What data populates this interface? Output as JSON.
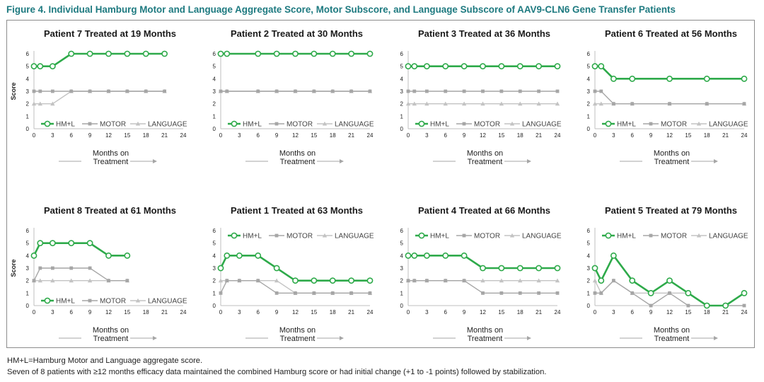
{
  "figure_title": "Figure 4. Individual Hamburg Motor and Language Aggregate Score, Motor Subscore, and Language Subscore of AAV9-CLN6 Gene Transfer Patients",
  "footnote_1": "HM+L=Hamburg Motor and Language aggregate score.",
  "footnote_2": "Seven of 8 patients with ≥12 months efficacy data maintained the combined Hamburg score or had initial change (+1 to -1 points) followed by stabilization.",
  "colors": {
    "hml": "#2eaa4a",
    "motor": "#a6a6a6",
    "language": "#c3c3c3",
    "title": "#1e7a80"
  },
  "chart_data": [
    {
      "type": "line",
      "title": "Patient 7 Treated at 19 Months",
      "ylabel": "Score",
      "xlabel": "Months on Treatment",
      "xticks": [
        0,
        3,
        6,
        9,
        12,
        15,
        18,
        21,
        24
      ],
      "yticks": [
        0,
        1,
        2,
        3,
        4,
        5,
        6
      ],
      "xlim": [
        0,
        24
      ],
      "ylim": [
        0,
        6
      ],
      "legend_position": "bottom",
      "series": [
        {
          "name": "HM+L",
          "x": [
            0,
            1,
            3,
            6,
            9,
            12,
            15,
            18,
            21
          ],
          "values": [
            5,
            5,
            5,
            6,
            6,
            6,
            6,
            6,
            6
          ]
        },
        {
          "name": "MOTOR",
          "x": [
            0,
            1,
            3,
            6,
            9,
            12,
            15,
            18,
            21
          ],
          "values": [
            3,
            3,
            3,
            3,
            3,
            3,
            3,
            3,
            3
          ]
        },
        {
          "name": "LANGUAGE",
          "x": [
            0,
            1,
            3,
            6,
            9,
            12,
            15,
            18,
            21
          ],
          "values": [
            2,
            2,
            2,
            3,
            3,
            3,
            3,
            3,
            3
          ]
        }
      ]
    },
    {
      "type": "line",
      "title": "Patient 2 Treated at 30 Months",
      "ylabel": "",
      "xlabel": "Months on Treatment",
      "xticks": [
        0,
        3,
        6,
        9,
        12,
        15,
        18,
        21,
        24
      ],
      "yticks": [
        0,
        1,
        2,
        3,
        4,
        5,
        6
      ],
      "xlim": [
        0,
        24
      ],
      "ylim": [
        0,
        6
      ],
      "legend_position": "bottom",
      "series": [
        {
          "name": "HM+L",
          "x": [
            0,
            1,
            6,
            9,
            12,
            15,
            18,
            21,
            24
          ],
          "values": [
            6,
            6,
            6,
            6,
            6,
            6,
            6,
            6,
            6
          ]
        },
        {
          "name": "MOTOR",
          "x": [
            0,
            1,
            6,
            9,
            12,
            15,
            18,
            21,
            24
          ],
          "values": [
            3,
            3,
            3,
            3,
            3,
            3,
            3,
            3,
            3
          ]
        },
        {
          "name": "LANGUAGE",
          "x": [
            0,
            1,
            6,
            9,
            12,
            15,
            18,
            21,
            24
          ],
          "values": [
            3,
            3,
            3,
            3,
            3,
            3,
            3,
            3,
            3
          ]
        }
      ]
    },
    {
      "type": "line",
      "title": "Patient 3 Treated at 36 Months",
      "ylabel": "",
      "xlabel": "Months on Treatment",
      "xticks": [
        0,
        3,
        6,
        9,
        12,
        15,
        18,
        21,
        24
      ],
      "yticks": [
        0,
        1,
        2,
        3,
        4,
        5,
        6
      ],
      "xlim": [
        0,
        24
      ],
      "ylim": [
        0,
        6
      ],
      "legend_position": "bottom",
      "series": [
        {
          "name": "HM+L",
          "x": [
            0,
            1,
            3,
            6,
            9,
            12,
            15,
            18,
            21,
            24
          ],
          "values": [
            5,
            5,
            5,
            5,
            5,
            5,
            5,
            5,
            5,
            5
          ]
        },
        {
          "name": "MOTOR",
          "x": [
            0,
            1,
            3,
            6,
            9,
            12,
            15,
            18,
            21,
            24
          ],
          "values": [
            3,
            3,
            3,
            3,
            3,
            3,
            3,
            3,
            3,
            3
          ]
        },
        {
          "name": "LANGUAGE",
          "x": [
            0,
            1,
            3,
            6,
            9,
            12,
            15,
            18,
            21,
            24
          ],
          "values": [
            2,
            2,
            2,
            2,
            2,
            2,
            2,
            2,
            2,
            2
          ]
        }
      ]
    },
    {
      "type": "line",
      "title": "Patient 6 Treated at 56 Months",
      "ylabel": "",
      "xlabel": "Months on Treatment",
      "xticks": [
        0,
        3,
        6,
        9,
        12,
        15,
        18,
        21,
        24
      ],
      "yticks": [
        0,
        1,
        2,
        3,
        4,
        5,
        6
      ],
      "xlim": [
        0,
        24
      ],
      "ylim": [
        0,
        6
      ],
      "legend_position": "bottom",
      "series": [
        {
          "name": "HM+L",
          "x": [
            0,
            1,
            3,
            6,
            12,
            18,
            24
          ],
          "values": [
            5,
            5,
            4,
            4,
            4,
            4,
            4
          ]
        },
        {
          "name": "MOTOR",
          "x": [
            0,
            1,
            3,
            6,
            12,
            18,
            24
          ],
          "values": [
            3,
            3,
            2,
            2,
            2,
            2,
            2
          ]
        },
        {
          "name": "LANGUAGE",
          "x": [
            0,
            1,
            3,
            6,
            12,
            18,
            24
          ],
          "values": [
            2,
            2,
            2,
            2,
            2,
            2,
            2
          ]
        }
      ]
    },
    {
      "type": "line",
      "title": "Patient 8 Treated at 61 Months",
      "ylabel": "Score",
      "xlabel": "Months on Treatment",
      "xticks": [
        0,
        3,
        6,
        9,
        12,
        15,
        18,
        21,
        24
      ],
      "yticks": [
        0,
        1,
        2,
        3,
        4,
        5,
        6
      ],
      "xlim": [
        0,
        24
      ],
      "ylim": [
        0,
        6
      ],
      "legend_position": "bottom",
      "series": [
        {
          "name": "HM+L",
          "x": [
            0,
            1,
            3,
            6,
            9,
            12,
            15
          ],
          "values": [
            4,
            5,
            5,
            5,
            5,
            4,
            4
          ]
        },
        {
          "name": "MOTOR",
          "x": [
            0,
            1,
            3,
            6,
            9,
            12,
            15
          ],
          "values": [
            2,
            3,
            3,
            3,
            3,
            2,
            2
          ]
        },
        {
          "name": "LANGUAGE",
          "x": [
            0,
            1,
            3,
            6,
            9,
            12,
            15
          ],
          "values": [
            2,
            2,
            2,
            2,
            2,
            2,
            2
          ]
        }
      ]
    },
    {
      "type": "line",
      "title": "Patient 1 Treated at 63 Months",
      "ylabel": "",
      "xlabel": "Months on Treatment",
      "xticks": [
        0,
        3,
        6,
        9,
        12,
        15,
        18,
        21,
        24
      ],
      "yticks": [
        0,
        1,
        2,
        3,
        4,
        5,
        6
      ],
      "xlim": [
        0,
        24
      ],
      "ylim": [
        0,
        6
      ],
      "legend_position": "top",
      "series": [
        {
          "name": "HM+L",
          "x": [
            0,
            1,
            3,
            6,
            9,
            12,
            15,
            18,
            21,
            24
          ],
          "values": [
            3,
            4,
            4,
            4,
            3,
            2,
            2,
            2,
            2,
            2
          ]
        },
        {
          "name": "MOTOR",
          "x": [
            0,
            1,
            3,
            6,
            9,
            12,
            15,
            18,
            21,
            24
          ],
          "values": [
            1,
            2,
            2,
            2,
            1,
            1,
            1,
            1,
            1,
            1
          ]
        },
        {
          "name": "LANGUAGE",
          "x": [
            0,
            1,
            3,
            6,
            9,
            12,
            15,
            18,
            21,
            24
          ],
          "values": [
            2,
            2,
            2,
            2,
            2,
            1,
            1,
            1,
            1,
            1
          ]
        }
      ]
    },
    {
      "type": "line",
      "title": "Patient 4 Treated at 66 Months",
      "ylabel": "",
      "xlabel": "Months on Treatment",
      "xticks": [
        0,
        3,
        6,
        9,
        12,
        15,
        18,
        21,
        24
      ],
      "yticks": [
        0,
        1,
        2,
        3,
        4,
        5,
        6
      ],
      "xlim": [
        0,
        24
      ],
      "ylim": [
        0,
        6
      ],
      "legend_position": "top",
      "series": [
        {
          "name": "HM+L",
          "x": [
            0,
            1,
            3,
            6,
            9,
            12,
            15,
            18,
            21,
            24
          ],
          "values": [
            4,
            4,
            4,
            4,
            4,
            3,
            3,
            3,
            3,
            3
          ]
        },
        {
          "name": "MOTOR",
          "x": [
            0,
            1,
            3,
            6,
            9,
            12,
            15,
            18,
            21,
            24
          ],
          "values": [
            2,
            2,
            2,
            2,
            2,
            1,
            1,
            1,
            1,
            1
          ]
        },
        {
          "name": "LANGUAGE",
          "x": [
            0,
            1,
            3,
            6,
            9,
            12,
            15,
            18,
            21,
            24
          ],
          "values": [
            2,
            2,
            2,
            2,
            2,
            2,
            2,
            2,
            2,
            2
          ]
        }
      ]
    },
    {
      "type": "line",
      "title": "Patient 5 Treated at 79 Months",
      "ylabel": "",
      "xlabel": "Months on Treatment",
      "xticks": [
        0,
        3,
        6,
        9,
        12,
        15,
        18,
        21,
        24
      ],
      "yticks": [
        0,
        1,
        2,
        3,
        4,
        5,
        6
      ],
      "xlim": [
        0,
        24
      ],
      "ylim": [
        0,
        6
      ],
      "legend_position": "top",
      "series": [
        {
          "name": "HM+L",
          "x": [
            0,
            1,
            3,
            6,
            9,
            12,
            15,
            18,
            21,
            24
          ],
          "values": [
            3,
            2,
            4,
            2,
            1,
            2,
            1,
            0,
            0,
            1
          ]
        },
        {
          "name": "MOTOR",
          "x": [
            0,
            1,
            3,
            6,
            9,
            12,
            15,
            18,
            21,
            24
          ],
          "values": [
            1,
            1,
            2,
            1,
            0,
            1,
            0,
            0,
            0,
            0
          ]
        },
        {
          "name": "LANGUAGE",
          "x": [
            0,
            1,
            3,
            6,
            9,
            12,
            15,
            18,
            21,
            24
          ],
          "values": [
            2,
            1,
            2,
            1,
            1,
            1,
            1,
            0,
            0,
            1
          ]
        }
      ]
    }
  ]
}
